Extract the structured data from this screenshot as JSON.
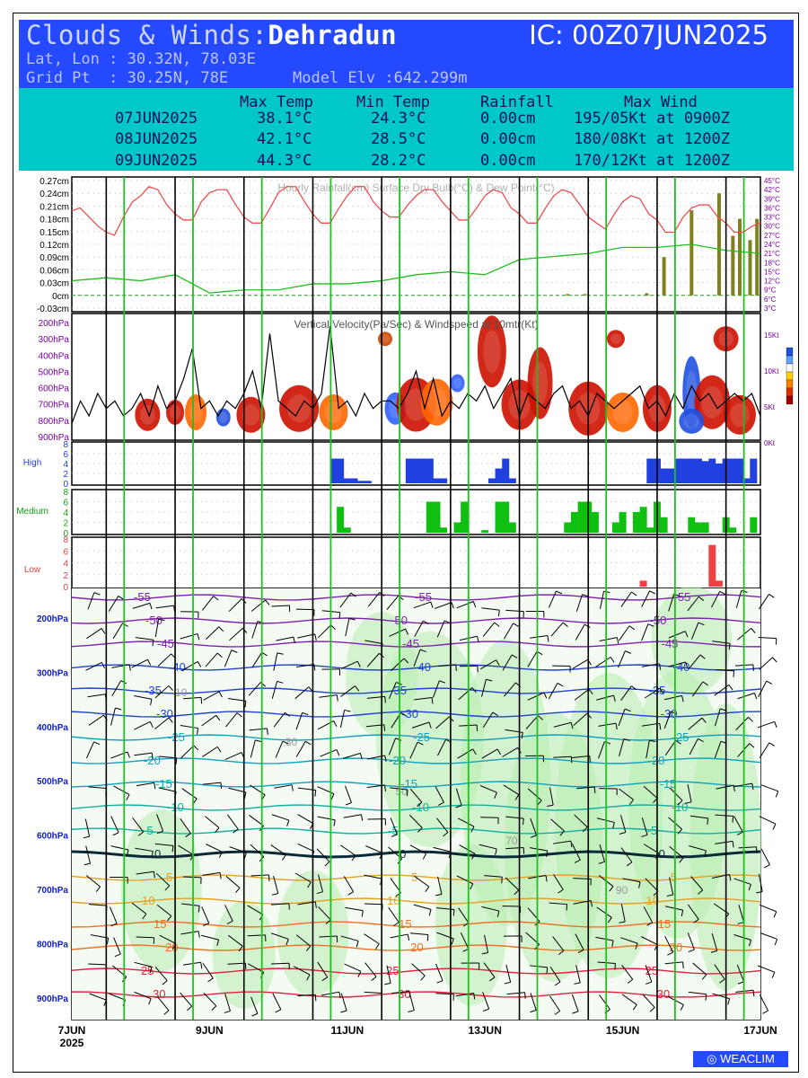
{
  "header": {
    "title_prefix": "Clouds & Winds:",
    "location": "Dehradun",
    "ic": "IC: 00Z07JUN2025",
    "latlon": "Lat, Lon : 30.32N, 78.03E",
    "grid": "Grid Pt  : 30.25N, 78E",
    "elevation": "Model Elv :642.299m"
  },
  "summary": {
    "columns": [
      "Max Temp",
      "Min Temp",
      "Rainfall",
      "Max Wind"
    ],
    "rows": [
      {
        "date": "07JUN2025",
        "max": "38.1°C",
        "min": "24.3°C",
        "rain": "0.00cm",
        "wind": "195/05Kt at 0900Z"
      },
      {
        "date": "08JUN2025",
        "max": "42.1°C",
        "min": "28.5°C",
        "rain": "0.00cm",
        "wind": "180/08Kt at 1200Z"
      },
      {
        "date": "09JUN2025",
        "max": "44.3°C",
        "min": "28.2°C",
        "rain": "0.00cm",
        "wind": "170/12Kt at 1200Z"
      }
    ]
  },
  "logo": "WEACLIM",
  "colors": {
    "header_bg": "#2549ff",
    "summary_bg": "#00c8c8",
    "temp": "#e85050",
    "dewpoint": "#20c020",
    "rain": "#808020",
    "high": "#2040e0",
    "medium": "#10c010",
    "low": "#f04040",
    "day_line": "#20c020",
    "night_line": "#000000"
  },
  "chart_data": [
    {
      "type": "line",
      "title": "Hourly Rainfall(cm)   Surface Dry Bulb(°C)  & Dew Point(°C)",
      "left_ticks": [
        "0.27cm",
        "0.24cm",
        "0.21cm",
        "0.18cm",
        "0.15cm",
        "0.12cm",
        "0.09cm",
        "0.06cm",
        "0.03cm",
        "0cm",
        "-0.03cm"
      ],
      "right_ticks": [
        "45°C",
        "42°C",
        "39°C",
        "36°C",
        "33°C",
        "30°C",
        "27°C",
        "24°C",
        "21°C",
        "18°C",
        "15°C",
        "12°C",
        "9°C",
        "6°C",
        "3°C"
      ],
      "ylim_rain": [
        -0.03,
        0.27
      ],
      "ylim_temp": [
        3,
        45
      ],
      "x_days": [
        0,
        10
      ],
      "series": [
        {
          "name": "Surface Dry Bulb(°C)",
          "x": [
            0,
            0.12,
            0.25,
            0.38,
            0.5,
            0.62,
            0.75,
            0.88,
            1,
            1.12,
            1.25,
            1.38,
            1.5,
            1.62,
            1.75,
            1.88,
            2,
            2.12,
            2.25,
            2.38,
            2.5,
            2.62,
            2.75,
            2.88,
            3,
            3.12,
            3.25,
            3.38,
            3.5,
            3.62,
            3.75,
            3.88,
            4,
            4.12,
            4.25,
            4.38,
            4.5,
            4.62,
            4.75,
            4.88,
            5,
            5.12,
            5.25,
            5.38,
            5.5,
            5.62,
            5.75,
            5.88,
            6,
            6.12,
            6.25,
            6.38,
            6.5,
            6.62,
            6.75,
            6.88,
            7,
            7.12,
            7.25,
            7.38,
            7.5,
            7.62,
            7.75,
            7.88,
            8,
            8.12,
            8.25,
            8.38,
            8.5,
            8.62,
            8.75,
            8.88,
            9,
            9.12,
            9.25,
            9.38,
            9.5,
            9.62,
            9.75,
            9.88,
            10
          ],
          "values": [
            35,
            36,
            33,
            30,
            28,
            27,
            33,
            38,
            40,
            43,
            42,
            37,
            34,
            32,
            32,
            38,
            41,
            42,
            42,
            37,
            33,
            31,
            31,
            36,
            41,
            43,
            43,
            38,
            34,
            31,
            31,
            36,
            40,
            43,
            43,
            38,
            35,
            33,
            33,
            37,
            40,
            42,
            42,
            38,
            35,
            32,
            32,
            36,
            40,
            42,
            41,
            36,
            34,
            31,
            31,
            36,
            40,
            42,
            41,
            37,
            33,
            31,
            29,
            34,
            38,
            40,
            39,
            34,
            32,
            28,
            28,
            33,
            36,
            37,
            37,
            33,
            31,
            28,
            28,
            30,
            31
          ]
        },
        {
          "name": "Dew Point(°C)",
          "x": [
            0,
            0.5,
            1,
            1.5,
            2,
            2.5,
            3,
            3.5,
            4,
            4.5,
            5,
            5.5,
            6,
            6.5,
            7,
            7.5,
            8,
            8.5,
            9,
            9.5,
            10
          ],
          "values": [
            12,
            13,
            12,
            14,
            8,
            9,
            9,
            11,
            11,
            12,
            14,
            15,
            14,
            19,
            20,
            21,
            23,
            23,
            24,
            22,
            21
          ]
        }
      ],
      "rain_bars": {
        "x": [
          7.2,
          7.45,
          8.35,
          8.6,
          9.0,
          9.4,
          9.6,
          9.7,
          9.85,
          9.95
        ],
        "values": [
          0.003,
          0.003,
          0.005,
          0.09,
          0.2,
          0.24,
          0.14,
          0.18,
          0.13,
          0.18
        ]
      }
    },
    {
      "type": "heatmap",
      "title": "Vertical Velocity(Pa/Sec) & Windspeed at 10mtr(Kt)",
      "y_ticks": [
        "200hPa",
        "300hPa",
        "400hPa",
        "500hPa",
        "600hPa",
        "700hPa",
        "800hPa",
        "900hPa"
      ],
      "right_ticks": [
        "15Kt",
        "10Kt",
        "5Kt",
        "0Kt"
      ],
      "windspeed_kt": [
        2,
        5,
        3,
        6,
        4,
        5,
        3,
        4,
        6,
        3,
        7,
        4,
        5,
        8,
        12,
        4,
        5,
        3,
        5,
        4,
        6,
        9,
        4,
        14,
        5,
        4,
        3,
        5,
        4,
        6,
        15,
        4,
        5,
        3,
        6,
        4,
        5,
        5,
        4,
        6,
        9,
        4,
        8,
        3,
        5,
        4,
        6,
        5,
        7,
        4,
        6,
        8,
        3,
        6,
        5,
        4,
        6,
        7,
        4,
        5,
        3,
        6,
        5,
        4,
        5,
        6,
        7,
        4,
        5,
        3,
        6,
        4,
        7,
        5,
        6,
        4,
        5,
        6,
        5,
        6,
        3
      ]
    },
    {
      "type": "bar",
      "title": "High",
      "y_ticks": [
        "8",
        "6",
        "4",
        "2",
        "0"
      ],
      "x": [
        3.8,
        3.9,
        4.0,
        4.1,
        4.2,
        4.3,
        4.9,
        5.0,
        5.1,
        5.2,
        5.3,
        5.4,
        6.1,
        6.2,
        6.3,
        6.4,
        8.4,
        8.5,
        8.6,
        8.7,
        8.8,
        8.9,
        9.0,
        9.1,
        9.2,
        9.3,
        9.4,
        9.5,
        9.6,
        9.7,
        9.8,
        9.9
      ],
      "values": [
        5,
        5,
        1,
        1,
        0.5,
        0.5,
        5,
        5,
        5,
        5,
        1,
        1,
        1,
        3,
        5,
        1,
        5,
        5,
        3,
        3,
        5,
        5,
        5,
        5,
        4.5,
        5,
        4,
        5,
        5,
        5,
        1,
        5
      ]
    },
    {
      "type": "bar",
      "title": "Medium",
      "y_ticks": [
        "8",
        "6",
        "4",
        "2",
        "0"
      ],
      "x": [
        3.9,
        4.0,
        5.2,
        5.3,
        5.4,
        5.6,
        5.7,
        6.0,
        6.2,
        6.3,
        6.4,
        7.2,
        7.3,
        7.4,
        7.5,
        7.6,
        7.9,
        8.0,
        8.2,
        8.3,
        8.4,
        8.5,
        8.6,
        9.0,
        9.1,
        9.2,
        9.5,
        9.6,
        9.9
      ],
      "values": [
        5,
        1,
        6,
        6,
        1,
        2,
        6,
        0.5,
        6,
        6,
        2,
        2,
        4,
        6,
        6,
        4,
        2,
        4,
        4,
        5,
        1,
        6,
        3,
        3,
        2,
        2,
        3,
        1,
        3
      ]
    },
    {
      "type": "bar",
      "title": "Low",
      "y_ticks": [
        "8",
        "6",
        "4",
        "2",
        "0"
      ],
      "x": [
        8.3,
        9.3,
        9.4
      ],
      "values": [
        1,
        7,
        1
      ]
    },
    {
      "type": "heatmap",
      "title": "",
      "y_ticks": [
        "200hPa",
        "300hPa",
        "400hPa",
        "500hPa",
        "600hPa",
        "700hPa",
        "800hPa",
        "900hPa"
      ],
      "x_ticks": [
        "7JUN",
        "9JUN",
        "11JUN",
        "13JUN",
        "15JUN",
        "17JUN"
      ],
      "x_year": "2025",
      "temperature_contours": [
        {
          "value": -55,
          "label": "-55"
        },
        {
          "value": -50,
          "label": "-50"
        },
        {
          "value": -45,
          "label": "-45"
        },
        {
          "value": -40,
          "label": "-40"
        },
        {
          "value": -35,
          "label": "-35"
        },
        {
          "value": -30,
          "label": "-30"
        },
        {
          "value": -25,
          "label": "-25"
        },
        {
          "value": -20,
          "label": "-20"
        },
        {
          "value": -15,
          "label": "-15"
        },
        {
          "value": -10,
          "label": "-10"
        },
        {
          "value": -5,
          "label": "-5"
        },
        {
          "value": 0,
          "label": "0"
        },
        {
          "value": 5,
          "label": "5"
        },
        {
          "value": 10,
          "label": "10"
        },
        {
          "value": 15,
          "label": "15"
        },
        {
          "value": 20,
          "label": "20"
        },
        {
          "value": 25,
          "label": "25"
        },
        {
          "value": 30,
          "label": "30"
        }
      ],
      "humidity_labels": [
        "10",
        "30",
        "50",
        "70",
        "90"
      ]
    }
  ]
}
